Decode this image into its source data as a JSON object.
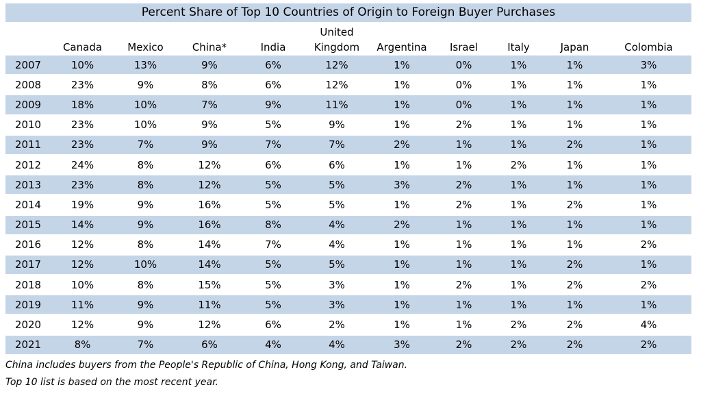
{
  "chart_data": {
    "type": "table",
    "title": "Percent Share of Top 10 Countries of Origin to Foreign Buyer Purchases",
    "columns": [
      "Canada",
      "Mexico",
      "China*",
      "India",
      "United Kingdom",
      "Argentina",
      "Israel",
      "Italy",
      "Japan",
      "Colombia"
    ],
    "rows": [
      {
        "year": "2007",
        "values": [
          "10%",
          "13%",
          "9%",
          "6%",
          "12%",
          "1%",
          "0%",
          "1%",
          "1%",
          "3%"
        ]
      },
      {
        "year": "2008",
        "values": [
          "23%",
          "9%",
          "8%",
          "6%",
          "12%",
          "1%",
          "0%",
          "1%",
          "1%",
          "1%"
        ]
      },
      {
        "year": "2009",
        "values": [
          "18%",
          "10%",
          "7%",
          "9%",
          "11%",
          "1%",
          "0%",
          "1%",
          "1%",
          "1%"
        ]
      },
      {
        "year": "2010",
        "values": [
          "23%",
          "10%",
          "9%",
          "5%",
          "9%",
          "1%",
          "2%",
          "1%",
          "1%",
          "1%"
        ]
      },
      {
        "year": "2011",
        "values": [
          "23%",
          "7%",
          "9%",
          "7%",
          "7%",
          "2%",
          "1%",
          "1%",
          "2%",
          "1%"
        ]
      },
      {
        "year": "2012",
        "values": [
          "24%",
          "8%",
          "12%",
          "6%",
          "6%",
          "1%",
          "1%",
          "2%",
          "1%",
          "1%"
        ]
      },
      {
        "year": "2013",
        "values": [
          "23%",
          "8%",
          "12%",
          "5%",
          "5%",
          "3%",
          "2%",
          "1%",
          "1%",
          "1%"
        ]
      },
      {
        "year": "2014",
        "values": [
          "19%",
          "9%",
          "16%",
          "5%",
          "5%",
          "1%",
          "2%",
          "1%",
          "2%",
          "1%"
        ]
      },
      {
        "year": "2015",
        "values": [
          "14%",
          "9%",
          "16%",
          "8%",
          "4%",
          "2%",
          "1%",
          "1%",
          "1%",
          "1%"
        ]
      },
      {
        "year": "2016",
        "values": [
          "12%",
          "8%",
          "14%",
          "7%",
          "4%",
          "1%",
          "1%",
          "1%",
          "1%",
          "2%"
        ]
      },
      {
        "year": "2017",
        "values": [
          "12%",
          "10%",
          "14%",
          "5%",
          "5%",
          "1%",
          "1%",
          "1%",
          "2%",
          "1%"
        ]
      },
      {
        "year": "2018",
        "values": [
          "10%",
          "8%",
          "15%",
          "5%",
          "3%",
          "1%",
          "2%",
          "1%",
          "2%",
          "2%"
        ]
      },
      {
        "year": "2019",
        "values": [
          "11%",
          "9%",
          "11%",
          "5%",
          "3%",
          "1%",
          "1%",
          "1%",
          "1%",
          "1%"
        ]
      },
      {
        "year": "2020",
        "values": [
          "12%",
          "9%",
          "12%",
          "6%",
          "2%",
          "1%",
          "1%",
          "2%",
          "2%",
          "4%"
        ]
      },
      {
        "year": "2021",
        "values": [
          "8%",
          "7%",
          "6%",
          "4%",
          "4%",
          "3%",
          "2%",
          "2%",
          "2%",
          "2%"
        ]
      }
    ],
    "notes": [
      "China includes buyers from the People's Republic of China, Hong Kong, and Taiwan.",
      "Top 10 list is based on the most recent year."
    ]
  },
  "colors": {
    "row_shade": "#c5d5e8",
    "background": "#ffffff",
    "text": "#000000"
  }
}
